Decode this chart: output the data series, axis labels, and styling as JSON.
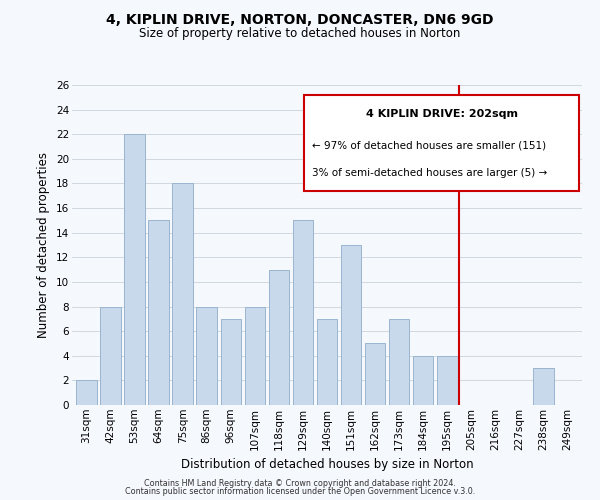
{
  "title": "4, KIPLIN DRIVE, NORTON, DONCASTER, DN6 9GD",
  "subtitle": "Size of property relative to detached houses in Norton",
  "xlabel": "Distribution of detached houses by size in Norton",
  "ylabel": "Number of detached properties",
  "bar_labels": [
    "31sqm",
    "42sqm",
    "53sqm",
    "64sqm",
    "75sqm",
    "86sqm",
    "96sqm",
    "107sqm",
    "118sqm",
    "129sqm",
    "140sqm",
    "151sqm",
    "162sqm",
    "173sqm",
    "184sqm",
    "195sqm",
    "205sqm",
    "216sqm",
    "227sqm",
    "238sqm",
    "249sqm"
  ],
  "bar_values": [
    2,
    8,
    22,
    15,
    18,
    8,
    7,
    8,
    11,
    15,
    7,
    13,
    5,
    7,
    4,
    4,
    0,
    0,
    0,
    3,
    0
  ],
  "bar_color": "#c8d9ec",
  "bar_edge_color": "#9ab5d0",
  "grid_color": "#d0d8e0",
  "vline_color": "#cc0000",
  "annotation_line1": "4 KIPLIN DRIVE: 202sqm",
  "annotation_line2": "← 97% of detached houses are smaller (151)",
  "annotation_line3": "3% of semi-detached houses are larger (5) →",
  "annotation_box_facecolor": "#ffffff",
  "annotation_box_edgecolor": "#cc0000",
  "ylim": [
    0,
    26
  ],
  "yticks": [
    0,
    2,
    4,
    6,
    8,
    10,
    12,
    14,
    16,
    18,
    20,
    22,
    24,
    26
  ],
  "footer_line1": "Contains HM Land Registry data © Crown copyright and database right 2024.",
  "footer_line2": "Contains public sector information licensed under the Open Government Licence v.3.0.",
  "background_color": "#f5f8fc",
  "title_fontsize": 10,
  "subtitle_fontsize": 8.5,
  "ylabel_fontsize": 8.5,
  "xlabel_fontsize": 8.5,
  "tick_fontsize": 7.5,
  "footer_fontsize": 5.8
}
